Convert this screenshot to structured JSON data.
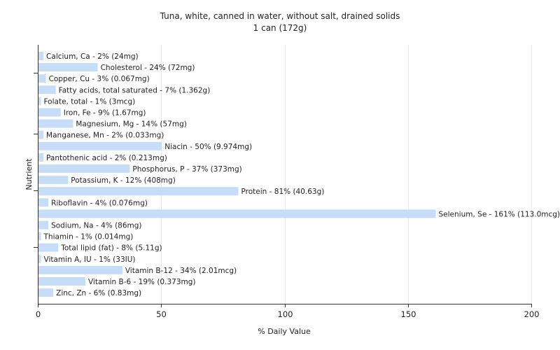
{
  "chart_data": {
    "type": "bar",
    "orientation": "horizontal",
    "title": "Tuna, white, canned in water, without salt, drained solids",
    "subtitle": "1 can (172g)",
    "xlabel": "% Daily Value",
    "ylabel": "Nutrient",
    "xlim": [
      0,
      200
    ],
    "xticks": [
      0,
      50,
      100,
      150,
      200
    ],
    "grid": true,
    "bar_color": "#c6dcf7",
    "categories": [
      "Calcium, Ca",
      "Cholesterol",
      "Copper, Cu",
      "Fatty acids, total saturated",
      "Folate, total",
      "Iron, Fe",
      "Magnesium, Mg",
      "Manganese, Mn",
      "Niacin",
      "Pantothenic acid",
      "Phosphorus, P",
      "Potassium, K",
      "Protein",
      "Riboflavin",
      "Selenium, Se",
      "Sodium, Na",
      "Thiamin",
      "Total lipid (fat)",
      "Vitamin A, IU",
      "Vitamin B-12",
      "Vitamin B-6",
      "Zinc, Zn"
    ],
    "values": [
      2,
      24,
      3,
      7,
      1,
      9,
      14,
      2,
      50,
      2,
      37,
      12,
      81,
      4,
      161,
      4,
      1,
      8,
      1,
      34,
      19,
      6
    ],
    "labels": [
      "Calcium, Ca - 2% (24mg)",
      "Cholesterol - 24% (72mg)",
      "Copper, Cu - 3% (0.067mg)",
      "Fatty acids, total saturated - 7% (1.362g)",
      "Folate, total - 1% (3mcg)",
      "Iron, Fe - 9% (1.67mg)",
      "Magnesium, Mg - 14% (57mg)",
      "Manganese, Mn - 2% (0.033mg)",
      "Niacin - 50% (9.974mg)",
      "Pantothenic acid - 2% (0.213mg)",
      "Phosphorus, P - 37% (373mg)",
      "Potassium, K - 12% (408mg)",
      "Protein - 81% (40.63g)",
      "Riboflavin - 4% (0.076mg)",
      "Selenium, Se - 161% (113.0mcg)",
      "Sodium, Na - 4% (86mg)",
      "Thiamin - 1% (0.014mg)",
      "Total lipid (fat) - 8% (5.11g)",
      "Vitamin A, IU - 1% (33IU)",
      "Vitamin B-12 - 34% (2.01mcg)",
      "Vitamin B-6 - 19% (0.373mg)",
      "Zinc, Zn - 6% (0.83mg)"
    ]
  }
}
